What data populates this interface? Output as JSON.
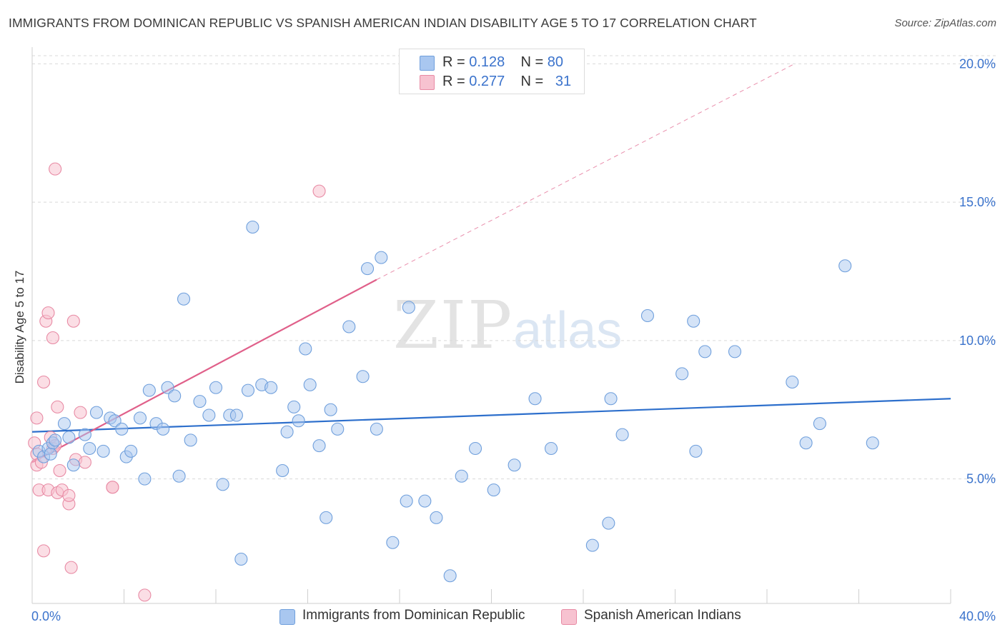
{
  "header": {
    "title": "IMMIGRANTS FROM DOMINICAN REPUBLIC VS SPANISH AMERICAN INDIAN DISABILITY AGE 5 TO 17 CORRELATION CHART",
    "source": "Source: ZipAtlas.com"
  },
  "watermark": {
    "zip": "ZIP",
    "atlas": "atlas"
  },
  "legend": {
    "rows": [
      {
        "r_label": "R =",
        "r_value": "0.128",
        "n_label": "N =",
        "n_value": "80",
        "color": "#a9c7f0"
      },
      {
        "r_label": "R =",
        "r_value": "0.277",
        "n_label": "N =",
        "n_value": "31",
        "color": "#f5b8c8"
      }
    ]
  },
  "colors": {
    "blue_fill": "#a9c7f0",
    "blue_stroke": "#6f9fdc",
    "blue_line": "#2d6fcc",
    "pink_fill": "#f7c2d0",
    "pink_stroke": "#e88aa4",
    "pink_line": "#e0608a",
    "axis_text": "#3b73cc",
    "grid": "#d9d9d9"
  },
  "chart_data": {
    "type": "scatter",
    "title": "IMMIGRANTS FROM DOMINICAN REPUBLIC VS SPANISH AMERICAN INDIAN DISABILITY AGE 5 TO 17 CORRELATION CHART",
    "ylabel": "Disability Age 5 to 17",
    "xlabel": "",
    "xlim": [
      0,
      40
    ],
    "ylim": [
      0.5,
      20.5
    ],
    "x_ticks": [
      0,
      4,
      8,
      12,
      16,
      20,
      24,
      28,
      32,
      36,
      40
    ],
    "x_tick_labels": [
      {
        "value": 0,
        "label": "0.0%"
      },
      {
        "value": 40,
        "label": "40.0%"
      }
    ],
    "y_ticks": [
      {
        "value": 5,
        "label": "5.0%"
      },
      {
        "value": 10,
        "label": "10.0%"
      },
      {
        "value": 15,
        "label": "15.0%"
      },
      {
        "value": 20,
        "label": "20.0%"
      }
    ],
    "grid": true,
    "legend_position": "top-center",
    "series": [
      {
        "name": "Immigrants from Dominican Republic",
        "color": "#a9c7f0",
        "r": 0.128,
        "n": 80,
        "trend": {
          "x": [
            0,
            40
          ],
          "y": [
            6.7,
            7.9
          ]
        },
        "points": [
          [
            0.3,
            6.0
          ],
          [
            0.5,
            5.8
          ],
          [
            0.7,
            6.1
          ],
          [
            0.8,
            5.9
          ],
          [
            0.9,
            6.3
          ],
          [
            1.0,
            6.4
          ],
          [
            1.4,
            7.0
          ],
          [
            1.6,
            6.5
          ],
          [
            1.8,
            5.5
          ],
          [
            2.3,
            6.6
          ],
          [
            2.5,
            6.1
          ],
          [
            2.8,
            7.4
          ],
          [
            3.1,
            6.0
          ],
          [
            3.4,
            7.2
          ],
          [
            3.6,
            7.1
          ],
          [
            3.9,
            6.8
          ],
          [
            4.1,
            5.8
          ],
          [
            4.3,
            6.0
          ],
          [
            4.7,
            7.2
          ],
          [
            4.9,
            5.0
          ],
          [
            5.1,
            8.2
          ],
          [
            5.4,
            7.0
          ],
          [
            5.7,
            6.8
          ],
          [
            5.9,
            8.3
          ],
          [
            6.2,
            8.0
          ],
          [
            6.4,
            5.1
          ],
          [
            6.6,
            11.5
          ],
          [
            6.9,
            6.4
          ],
          [
            7.3,
            7.8
          ],
          [
            7.7,
            7.3
          ],
          [
            8.0,
            8.3
          ],
          [
            8.3,
            4.8
          ],
          [
            8.6,
            7.3
          ],
          [
            8.9,
            7.3
          ],
          [
            9.1,
            2.1
          ],
          [
            9.4,
            8.2
          ],
          [
            9.6,
            14.1
          ],
          [
            10.0,
            8.4
          ],
          [
            10.4,
            8.3
          ],
          [
            10.9,
            5.3
          ],
          [
            11.1,
            6.7
          ],
          [
            11.4,
            7.6
          ],
          [
            11.6,
            7.1
          ],
          [
            11.9,
            9.7
          ],
          [
            12.1,
            8.4
          ],
          [
            12.5,
            6.2
          ],
          [
            12.8,
            3.6
          ],
          [
            13.0,
            7.5
          ],
          [
            13.3,
            6.8
          ],
          [
            13.8,
            10.5
          ],
          [
            14.4,
            8.7
          ],
          [
            14.6,
            12.6
          ],
          [
            15.0,
            6.8
          ],
          [
            15.2,
            13.0
          ],
          [
            15.7,
            2.7
          ],
          [
            16.3,
            4.2
          ],
          [
            16.4,
            11.2
          ],
          [
            17.1,
            4.2
          ],
          [
            17.6,
            3.6
          ],
          [
            18.2,
            1.5
          ],
          [
            18.7,
            5.1
          ],
          [
            19.3,
            6.1
          ],
          [
            20.1,
            4.6
          ],
          [
            21.0,
            5.5
          ],
          [
            21.9,
            7.9
          ],
          [
            22.6,
            6.1
          ],
          [
            24.4,
            2.6
          ],
          [
            25.1,
            3.4
          ],
          [
            25.2,
            7.9
          ],
          [
            25.7,
            6.6
          ],
          [
            26.8,
            10.9
          ],
          [
            28.3,
            8.8
          ],
          [
            28.8,
            10.7
          ],
          [
            28.9,
            6.0
          ],
          [
            29.3,
            9.6
          ],
          [
            30.6,
            9.6
          ],
          [
            33.1,
            8.5
          ],
          [
            33.7,
            6.3
          ],
          [
            34.3,
            7.0
          ],
          [
            35.4,
            12.7
          ],
          [
            36.6,
            6.3
          ]
        ]
      },
      {
        "name": "Spanish American Indians",
        "color": "#f7c2d0",
        "r": 0.277,
        "n": 31,
        "trend": {
          "x": [
            0,
            15.0
          ],
          "y": [
            5.6,
            12.2
          ],
          "dashed_to": {
            "x": 33.2,
            "y": 20.0
          }
        },
        "points": [
          [
            0.1,
            6.3
          ],
          [
            0.2,
            5.9
          ],
          [
            0.2,
            5.5
          ],
          [
            0.2,
            7.2
          ],
          [
            0.3,
            4.6
          ],
          [
            0.4,
            5.6
          ],
          [
            0.5,
            8.5
          ],
          [
            0.5,
            2.4
          ],
          [
            0.6,
            10.7
          ],
          [
            0.7,
            4.6
          ],
          [
            0.7,
            11.0
          ],
          [
            0.8,
            6.5
          ],
          [
            0.9,
            10.1
          ],
          [
            0.9,
            6.1
          ],
          [
            1.0,
            6.2
          ],
          [
            1.0,
            16.2
          ],
          [
            1.1,
            4.5
          ],
          [
            1.1,
            7.6
          ],
          [
            1.2,
            5.3
          ],
          [
            1.3,
            4.6
          ],
          [
            1.6,
            4.1
          ],
          [
            1.6,
            4.4
          ],
          [
            1.7,
            1.8
          ],
          [
            1.8,
            10.7
          ],
          [
            1.9,
            5.7
          ],
          [
            2.1,
            7.4
          ],
          [
            2.3,
            5.6
          ],
          [
            3.5,
            4.7
          ],
          [
            3.5,
            4.7
          ],
          [
            4.9,
            0.8
          ],
          [
            12.5,
            15.4
          ]
        ]
      }
    ]
  },
  "bottom_legend": [
    {
      "label": "Immigrants from Dominican Republic",
      "color": "#a9c7f0"
    },
    {
      "label": "Spanish American Indians",
      "color": "#f7c2d0"
    }
  ]
}
